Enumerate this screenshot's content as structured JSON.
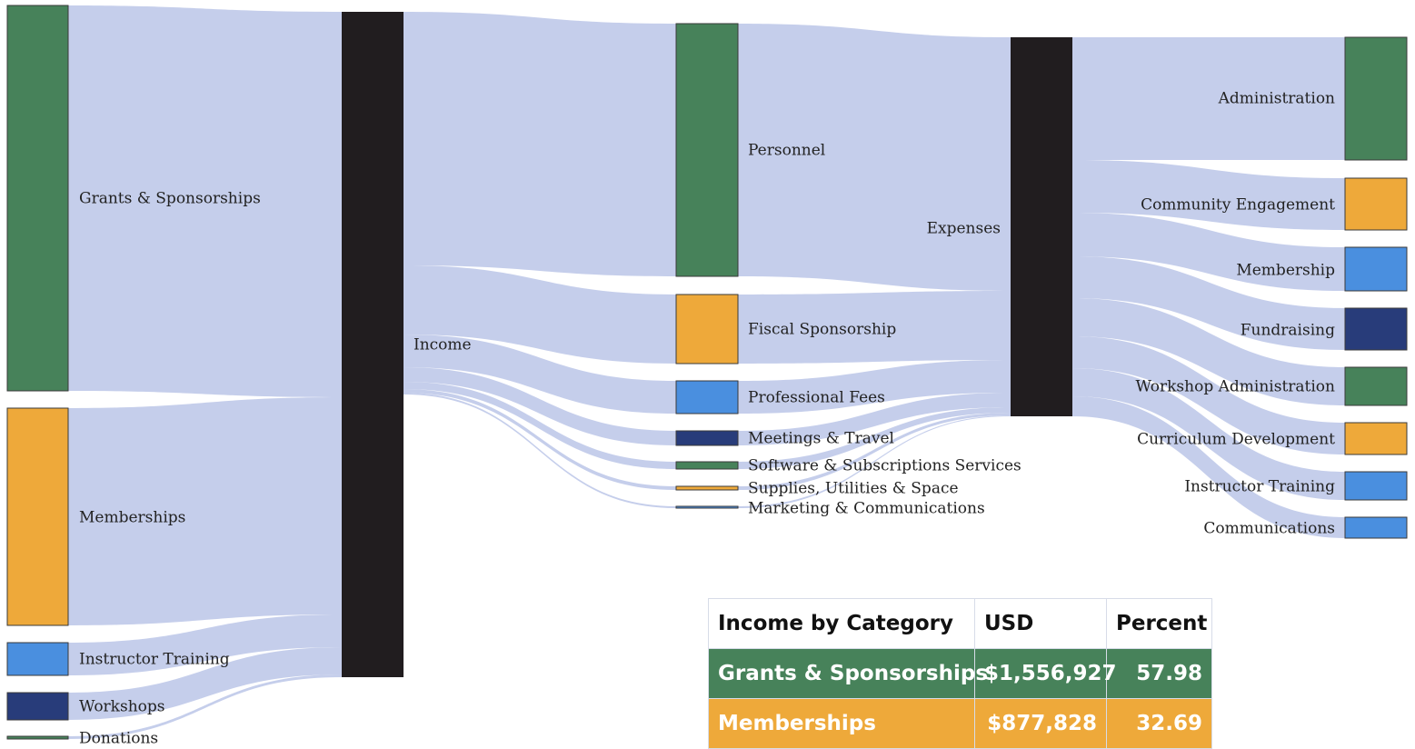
{
  "colors": {
    "green": "#47825A",
    "orange": "#EEA93A",
    "blue": "#4A8FDF",
    "navy": "#283C7A",
    "dark": "#211D1F",
    "link": "#C2CBEA"
  },
  "nodes": [
    {
      "id": "grants",
      "label": "Grants & Sponsorships",
      "color": "green",
      "labelSide": "right"
    },
    {
      "id": "memberships",
      "label": "Memberships",
      "color": "orange",
      "labelSide": "right"
    },
    {
      "id": "instructor_training_in",
      "label": "Instructor Training",
      "color": "blue",
      "labelSide": "right"
    },
    {
      "id": "workshops",
      "label": "Workshops",
      "color": "navy",
      "labelSide": "right"
    },
    {
      "id": "donations",
      "label": "Donations",
      "color": "green",
      "labelSide": "right"
    },
    {
      "id": "income",
      "label": "Income",
      "color": "dark",
      "labelSide": "right"
    },
    {
      "id": "personnel",
      "label": "Personnel",
      "color": "green",
      "labelSide": "right"
    },
    {
      "id": "fiscal",
      "label": "Fiscal Sponsorship",
      "color": "orange",
      "labelSide": "right"
    },
    {
      "id": "professional",
      "label": "Professional Fees",
      "color": "blue",
      "labelSide": "right"
    },
    {
      "id": "meetings",
      "label": "Meetings & Travel",
      "color": "navy",
      "labelSide": "right"
    },
    {
      "id": "software",
      "label": "Software & Subscriptions Services",
      "color": "green",
      "labelSide": "right"
    },
    {
      "id": "supplies",
      "label": "Supplies, Utilities & Space",
      "color": "orange",
      "labelSide": "right"
    },
    {
      "id": "marketing",
      "label": "Marketing & Communications",
      "color": "blue",
      "labelSide": "right"
    },
    {
      "id": "expenses",
      "label": "Expenses",
      "color": "dark",
      "labelSide": "left"
    },
    {
      "id": "administration",
      "label": "Administration",
      "color": "green",
      "labelSide": "left"
    },
    {
      "id": "community",
      "label": "Community Engagement",
      "color": "orange",
      "labelSide": "left"
    },
    {
      "id": "membership_out",
      "label": "Membership",
      "color": "blue",
      "labelSide": "left"
    },
    {
      "id": "fundraising",
      "label": "Fundraising",
      "color": "navy",
      "labelSide": "left"
    },
    {
      "id": "workshop_admin",
      "label": "Workshop Administration",
      "color": "green",
      "labelSide": "left"
    },
    {
      "id": "curriculum",
      "label": "Curriculum Development",
      "color": "orange",
      "labelSide": "left"
    },
    {
      "id": "instructor_training_out",
      "label": "Instructor Training",
      "color": "blue",
      "labelSide": "left"
    },
    {
      "id": "communications",
      "label": "Communications",
      "color": "blue",
      "labelSide": "left"
    }
  ],
  "table": {
    "headers": [
      "Income by Category",
      "USD",
      "Percent"
    ],
    "rows": [
      {
        "category": "Grants & Sponsorships",
        "usd": "$1,556,927",
        "percent": "57.98",
        "color": "green"
      },
      {
        "category": "Memberships",
        "usd": "$877,828",
        "percent": "32.69",
        "color": "orange"
      }
    ]
  }
}
